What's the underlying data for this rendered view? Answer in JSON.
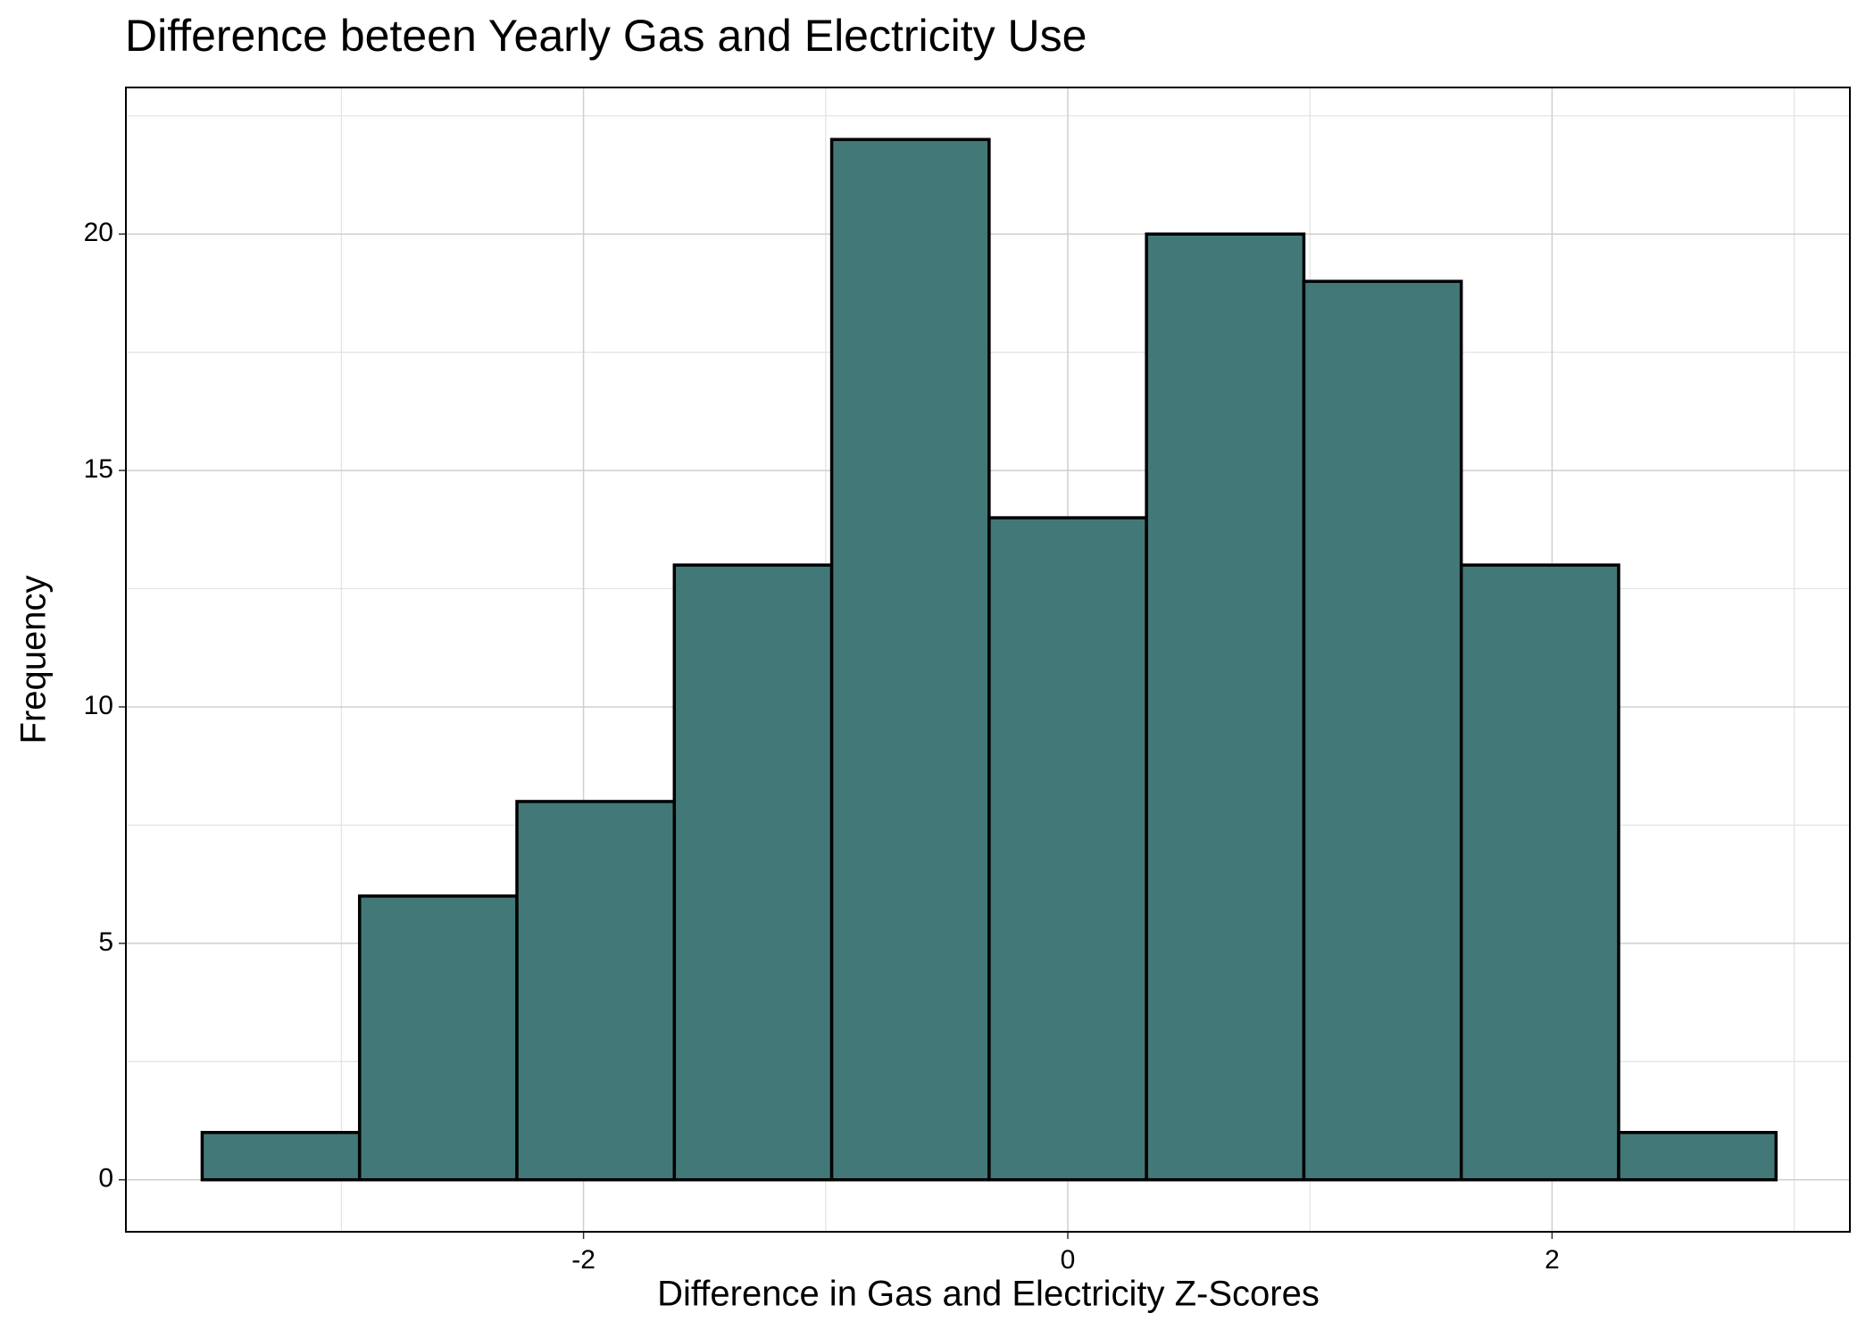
{
  "chart_data": {
    "type": "histogram",
    "title": "Difference beteen Yearly Gas and Electricity Use",
    "x_label": "Difference in Gas and Electricity Z-Scores",
    "y_label": "Frequency",
    "bins": [
      -3.575,
      -2.925,
      -2.275,
      -1.625,
      -0.975,
      -0.325,
      0.325,
      0.975,
      1.625,
      2.275,
      2.925
    ],
    "values": [
      1,
      6,
      8,
      13,
      22,
      14,
      20,
      19,
      13,
      1
    ],
    "color": "#437878",
    "edgecolor": "#000000",
    "xlim": [
      -3.89,
      3.23
    ],
    "ylim": [
      -1.1,
      23.1
    ],
    "xticks": [
      -2,
      0,
      2
    ],
    "yticks": [
      0,
      5,
      10,
      15,
      20
    ],
    "grid": true
  }
}
